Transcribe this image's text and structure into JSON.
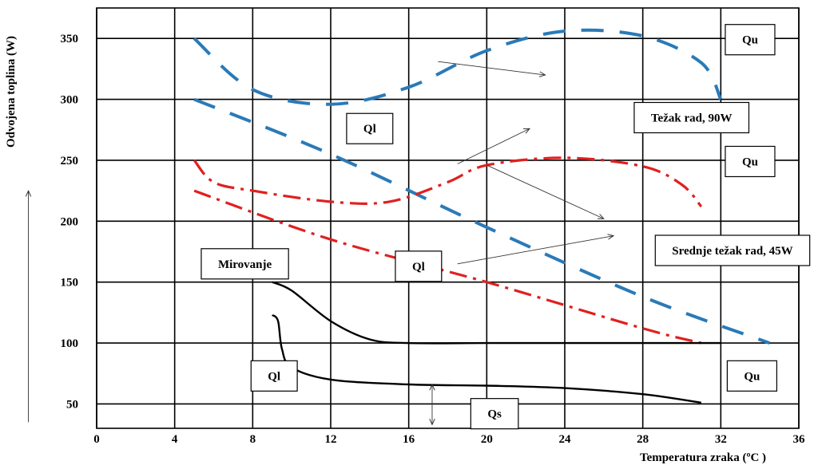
{
  "chart_data": {
    "type": "line",
    "title": "",
    "xlabel": "Temperatura zraka  (ºC )",
    "ylabel": "Odvojena toplina (W)",
    "xlim": [
      0,
      36
    ],
    "ylim": [
      30,
      375
    ],
    "x_ticks": [
      "0",
      "4",
      "8",
      "12",
      "16",
      "20",
      "24",
      "28",
      "32",
      "36"
    ],
    "y_ticks": [
      "50",
      "100",
      "150",
      "200",
      "250",
      "300",
      "350"
    ],
    "grid": true,
    "colors": {
      "heavy": "#2a7ab8",
      "medium": "#e02020",
      "rest": "#000000"
    },
    "series": [
      {
        "group": "heavy",
        "dash": "long-dash",
        "x": [
          5,
          8,
          12,
          16,
          20,
          24,
          28,
          31,
          32
        ],
        "y": [
          350,
          308,
          296,
          310,
          340,
          356,
          352,
          330,
          300
        ]
      },
      {
        "group": "heavy",
        "dash": "long-dash",
        "x": [
          5,
          12,
          20,
          28,
          34.5
        ],
        "y": [
          300,
          255,
          195,
          138,
          100
        ]
      },
      {
        "group": "medium",
        "dash": "dash-dot",
        "x": [
          5,
          6,
          8,
          12,
          15,
          18,
          20,
          24,
          28,
          30,
          31
        ],
        "y": [
          250,
          232,
          225,
          216,
          216,
          232,
          246,
          252,
          245,
          230,
          212
        ]
      },
      {
        "group": "medium",
        "dash": "dash-dot",
        "x": [
          5,
          12,
          20,
          28,
          31
        ],
        "y": [
          225,
          185,
          150,
          112,
          100
        ]
      },
      {
        "group": "rest",
        "dash": "solid",
        "x": [
          9,
          10,
          12,
          14,
          16,
          20,
          24,
          28,
          32
        ],
        "y": [
          150,
          143,
          118,
          103,
          100,
          100,
          100,
          100,
          100
        ]
      },
      {
        "group": "rest",
        "dash": "solid",
        "x": [
          9,
          9.3,
          9.5,
          10,
          12,
          16,
          20,
          24,
          28,
          31
        ],
        "y": [
          123,
          118,
          95,
          80,
          70,
          66,
          65,
          63,
          58,
          51
        ]
      }
    ],
    "annotations": {
      "labels": [
        {
          "key": "qu1",
          "text": "Qu",
          "x": 33.5,
          "y": 349
        },
        {
          "key": "ql1",
          "text": "Ql",
          "x": 14,
          "y": 276
        },
        {
          "key": "tezak",
          "text": "Težak rad, 90W",
          "x": 30.5,
          "y": 285
        },
        {
          "key": "qu2",
          "text": "Qu",
          "x": 33.5,
          "y": 249
        },
        {
          "key": "srednje",
          "text": "Srednje težak rad, 45W",
          "x": 32.6,
          "y": 176
        },
        {
          "key": "ql2",
          "text": "Ql",
          "x": 16.5,
          "y": 163
        },
        {
          "key": "mirovanje",
          "text": "Mirovanje",
          "x": 7.6,
          "y": 165
        },
        {
          "key": "ql3",
          "text": "Ql",
          "x": 9.1,
          "y": 73
        },
        {
          "key": "qu3",
          "text": "Qu",
          "x": 33.6,
          "y": 73
        },
        {
          "key": "qs",
          "text": "Qs",
          "x": 20.4,
          "y": 42
        }
      ],
      "pointer_arrows": [
        {
          "from": [
            17.5,
            331
          ],
          "to": [
            23,
            320
          ]
        },
        {
          "from": [
            18.5,
            247
          ],
          "to": [
            22.2,
            276
          ]
        },
        {
          "from": [
            20,
            246
          ],
          "to": [
            26,
            202
          ]
        },
        {
          "from": [
            18.5,
            165
          ],
          "to": [
            26.5,
            188
          ]
        }
      ]
    },
    "axis_arrows": {
      "x": {
        "from": [
          0,
          -5
        ],
        "to": [
          21,
          -5
        ]
      },
      "y": {
        "from": [
          -3.5,
          35
        ],
        "to": [
          -3.5,
          225
        ]
      }
    },
    "qs_marker": {
      "x": 17.2,
      "y_from": 33,
      "y_to": 66
    }
  }
}
